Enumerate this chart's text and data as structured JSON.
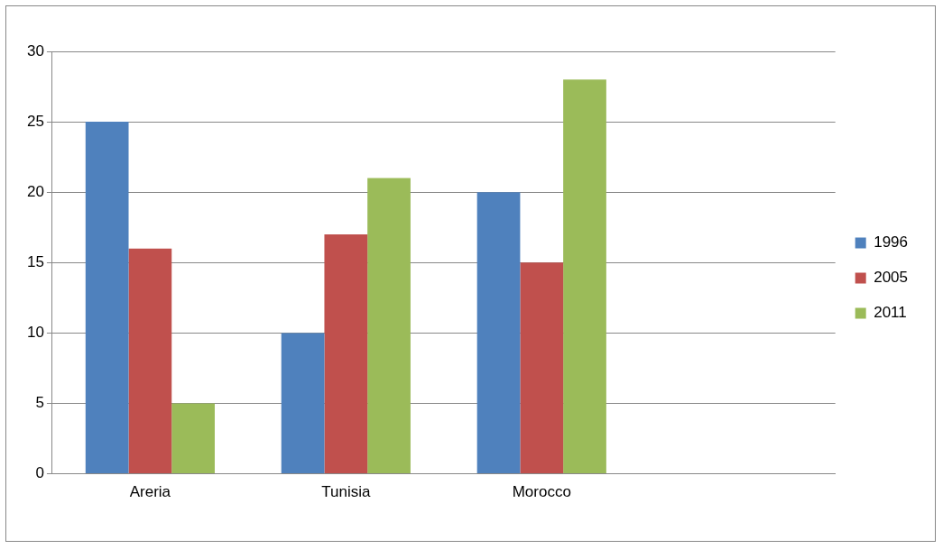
{
  "chart_data": {
    "type": "bar",
    "categories": [
      "Areria",
      "Tunisia",
      "Morocco",
      null
    ],
    "series": [
      {
        "name": "1996",
        "color": "#4f81bd",
        "values": [
          25,
          10,
          20,
          null
        ]
      },
      {
        "name": "2005",
        "color": "#c0504d",
        "values": [
          16,
          17,
          15,
          null
        ]
      },
      {
        "name": "2011",
        "color": "#9bbb59",
        "values": [
          5,
          21,
          28,
          null
        ]
      }
    ],
    "ylim": [
      0,
      30
    ],
    "yticks": [
      0,
      5,
      10,
      15,
      20,
      25,
      30
    ],
    "grid": "y",
    "legend": "right"
  }
}
